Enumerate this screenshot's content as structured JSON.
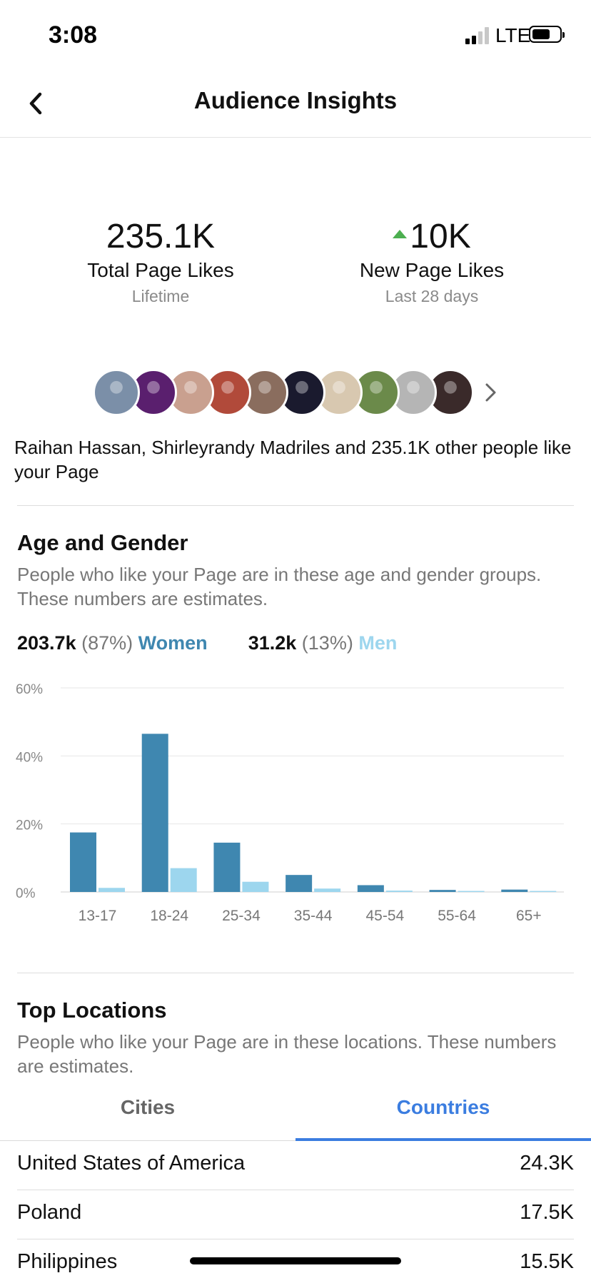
{
  "status_bar": {
    "time": "3:08",
    "network": "LTE",
    "battery_level": 0.7
  },
  "header": {
    "title": "Audience Insights"
  },
  "stats": {
    "total": {
      "value": "235.1K",
      "label": "Total Page Likes",
      "sub": "Lifetime"
    },
    "new": {
      "value": "10K",
      "label": "New Page Likes",
      "sub": "Last 28 days",
      "trend_color": "#4caf50"
    }
  },
  "likers": {
    "text": "Raihan Hassan, Shirleyrandy Madriles and 235.1K other people like your Page",
    "avatar_colors": [
      "#7b8fa8",
      "#5a1f6e",
      "#c9a08f",
      "#b14a3a",
      "#8a6d5e",
      "#1a1a2e",
      "#d8c8b0",
      "#6b8a4a",
      "#b5b5b5",
      "#3a2a2a"
    ]
  },
  "age_gender": {
    "title": "Age and Gender",
    "description": "People who like your Page are in these age and gender groups. These numbers are estimates.",
    "women": {
      "count": "203.7k",
      "pct": "(87%)",
      "label": "Women",
      "color": "#3f87b0"
    },
    "men": {
      "count": "31.2k",
      "pct": "(13%)",
      "label": "Men",
      "color": "#9dd6ee"
    }
  },
  "chart_data": {
    "type": "bar",
    "categories": [
      "13-17",
      "18-24",
      "25-34",
      "35-44",
      "45-54",
      "55-64",
      "65+"
    ],
    "series": [
      {
        "name": "Women",
        "values": [
          17.5,
          46.5,
          14.5,
          5,
          2,
          0.6,
          0.7
        ]
      },
      {
        "name": "Men",
        "values": [
          1.2,
          7,
          3,
          1,
          0.4,
          0.3,
          0.3
        ]
      }
    ],
    "yticks": [
      "60%",
      "40%",
      "20%",
      "0%"
    ],
    "ylim": [
      0,
      60
    ],
    "grid": true
  },
  "top_locations": {
    "title": "Top Locations",
    "description": "People who like your Page are in these locations. These numbers are estimates.",
    "tabs": [
      {
        "label": "Cities",
        "active": false
      },
      {
        "label": "Countries",
        "active": true
      }
    ],
    "rows": [
      {
        "name": "United States of America",
        "value": "24.3K"
      },
      {
        "name": "Poland",
        "value": "17.5K"
      },
      {
        "name": "Philippines",
        "value": "15.5K"
      }
    ]
  }
}
